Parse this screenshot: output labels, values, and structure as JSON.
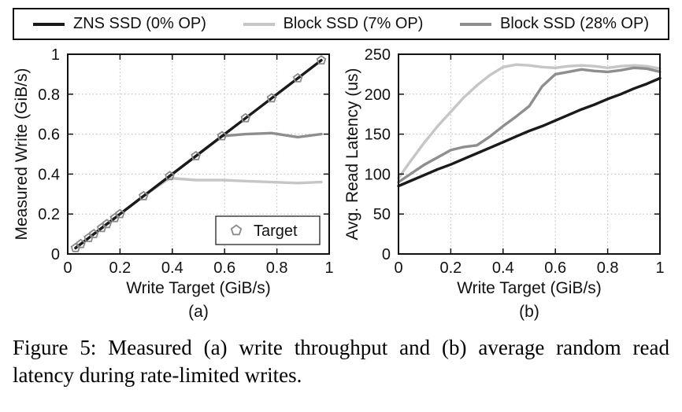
{
  "page": {
    "background": "#ffffff"
  },
  "legend": {
    "items": [
      {
        "label": "ZNS SSD (0% OP)",
        "color": "#1a1a1a"
      },
      {
        "label": "Block SSD (7% OP)",
        "color": "#c6c6c6"
      },
      {
        "label": "Block SSD (28% OP)",
        "color": "#8e8e8e"
      }
    ]
  },
  "caption": "Figure 5: Measured (a) write throughput and (b) average random read latency during rate-limited writes.",
  "chart_data": [
    {
      "type": "line",
      "title": "",
      "sublabel": "(a)",
      "xlabel": "Write Target (GiB/s)",
      "ylabel": "Measured Write (GiB/s)",
      "xlim": [
        0,
        1
      ],
      "ylim": [
        0,
        1
      ],
      "xticks": [
        0,
        0.2,
        0.4,
        0.6,
        0.8,
        1
      ],
      "yticks": [
        0,
        0.2,
        0.4,
        0.6,
        0.8,
        1
      ],
      "grid": true,
      "legend_position": "top-shared",
      "x": [
        0.03,
        0.05,
        0.08,
        0.1,
        0.13,
        0.15,
        0.18,
        0.2,
        0.29,
        0.39,
        0.49,
        0.59,
        0.68,
        0.78,
        0.88,
        0.97
      ],
      "series": [
        {
          "name": "Block SSD (7% OP)",
          "color": "#c6c6c6",
          "values": [
            0.03,
            0.05,
            0.08,
            0.1,
            0.13,
            0.15,
            0.18,
            0.2,
            0.29,
            0.38,
            0.37,
            0.37,
            0.365,
            0.36,
            0.355,
            0.36
          ]
        },
        {
          "name": "Block SSD (28% OP)",
          "color": "#8e8e8e",
          "values": [
            0.03,
            0.05,
            0.08,
            0.1,
            0.13,
            0.15,
            0.18,
            0.2,
            0.29,
            0.39,
            0.49,
            0.59,
            0.6,
            0.605,
            0.585,
            0.6
          ]
        },
        {
          "name": "ZNS SSD (0% OP)",
          "color": "#1a1a1a",
          "values": [
            0.03,
            0.05,
            0.08,
            0.1,
            0.13,
            0.15,
            0.18,
            0.2,
            0.29,
            0.39,
            0.49,
            0.59,
            0.68,
            0.78,
            0.88,
            0.97
          ]
        }
      ],
      "markers": {
        "name": "Target",
        "shape": "pentagon",
        "color": "#8a8a8a",
        "x": [
          0.03,
          0.05,
          0.08,
          0.1,
          0.13,
          0.15,
          0.18,
          0.2,
          0.29,
          0.39,
          0.49,
          0.59,
          0.68,
          0.78,
          0.88,
          0.97
        ],
        "y": [
          0.03,
          0.05,
          0.08,
          0.1,
          0.13,
          0.15,
          0.18,
          0.2,
          0.29,
          0.39,
          0.49,
          0.59,
          0.68,
          0.78,
          0.88,
          0.97
        ]
      },
      "inner_legend": {
        "label": "Target",
        "marker": "pentagon"
      }
    },
    {
      "type": "line",
      "title": "",
      "sublabel": "(b)",
      "xlabel": "Write Target (GiB/s)",
      "ylabel": "Avg. Read Latency (us)",
      "xlim": [
        0,
        1
      ],
      "ylim": [
        0,
        250
      ],
      "xticks": [
        0,
        0.2,
        0.4,
        0.6,
        0.8,
        1
      ],
      "yticks": [
        0,
        50,
        100,
        150,
        200,
        250
      ],
      "grid": true,
      "legend_position": "top-shared",
      "x": [
        0,
        0.05,
        0.1,
        0.15,
        0.2,
        0.25,
        0.3,
        0.35,
        0.4,
        0.45,
        0.5,
        0.55,
        0.6,
        0.65,
        0.7,
        0.75,
        0.8,
        0.85,
        0.9,
        0.95,
        1
      ],
      "series": [
        {
          "name": "Block SSD (7% OP)",
          "color": "#c6c6c6",
          "values": [
            95,
            118,
            140,
            160,
            178,
            196,
            211,
            224,
            234,
            237,
            236,
            234,
            233,
            235,
            236,
            235,
            233,
            235,
            236,
            235,
            232
          ]
        },
        {
          "name": "Block SSD (28% OP)",
          "color": "#8e8e8e",
          "values": [
            90,
            101,
            112,
            121,
            130,
            134,
            136,
            147,
            160,
            172,
            185,
            210,
            225,
            228,
            231,
            229,
            228,
            230,
            233,
            232,
            228
          ]
        },
        {
          "name": "ZNS SSD (0% OP)",
          "color": "#1a1a1a",
          "values": [
            85,
            92,
            99,
            106,
            112,
            119,
            126,
            133,
            140,
            147,
            154,
            160,
            167,
            174,
            181,
            187,
            194,
            200,
            207,
            213,
            220
          ]
        }
      ]
    }
  ]
}
